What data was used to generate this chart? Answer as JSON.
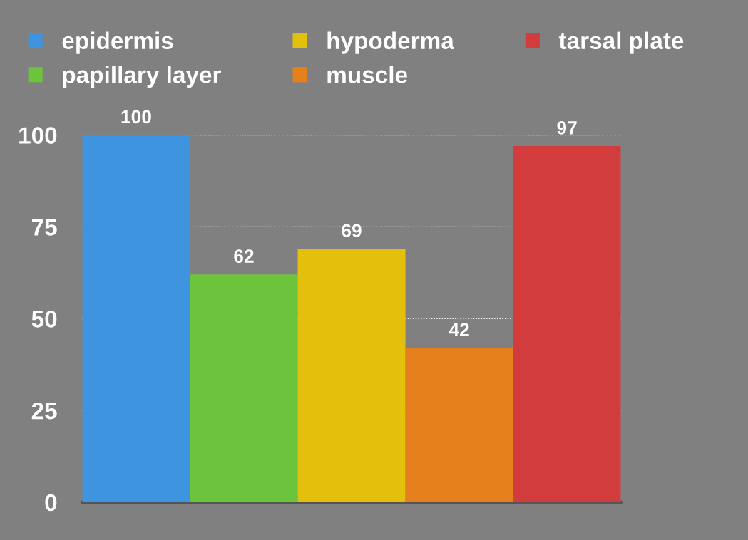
{
  "chart_data": {
    "type": "bar",
    "categories": [
      null
    ],
    "series": [
      {
        "name": "epidermis",
        "color": "#3f94e0",
        "values": [
          100
        ]
      },
      {
        "name": "papillary layer",
        "color": "#6cc43c",
        "values": [
          62
        ]
      },
      {
        "name": "hypoderma",
        "color": "#e3c00c",
        "values": [
          69
        ]
      },
      {
        "name": "muscle",
        "color": "#e6801c",
        "values": [
          42
        ]
      },
      {
        "name": "tarsal plate",
        "color": "#d23c3c",
        "values": [
          97
        ]
      }
    ],
    "ylim": [
      0,
      100
    ],
    "yticks": [
      0,
      25,
      50,
      75,
      100
    ],
    "grid": "y",
    "legend": "top",
    "data_labels": true,
    "tick_labels": "y"
  }
}
